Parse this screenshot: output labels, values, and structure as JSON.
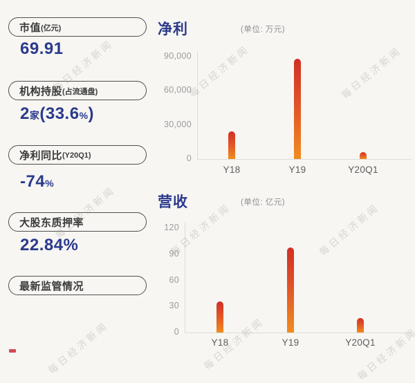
{
  "watermark": {
    "text": "每日经济新闻"
  },
  "colors": {
    "accent_blue": "#2b3a8c",
    "bar_gradient_top": "#d02f26",
    "bar_gradient_bottom": "#f08c1e",
    "pill_border": "#4f4f4f",
    "red_dash": "#d14b55",
    "background": "#f7f6f3"
  },
  "sidebar": {
    "stats": [
      {
        "label": "市值",
        "label_suffix": "(亿元)",
        "value_text": "69.91",
        "value_parts": [
          {
            "t": "69.91",
            "s": "big"
          }
        ]
      },
      {
        "label": "机构持股",
        "label_suffix": "(占流通盘)",
        "value_text": "2家(33.6%)",
        "value_parts": [
          {
            "t": "2",
            "s": "big"
          },
          {
            "t": "家",
            "s": "small"
          },
          {
            "t": "(33.6",
            "s": "big"
          },
          {
            "t": "%",
            "s": "small"
          },
          {
            "t": ")",
            "s": "big"
          }
        ]
      },
      {
        "label": "净利同比",
        "label_suffix": "(Y20Q1)",
        "value_text": "-74%",
        "value_parts": [
          {
            "t": "-74",
            "s": "big"
          },
          {
            "t": "%",
            "s": "small"
          }
        ]
      },
      {
        "label": "大股东质押率",
        "label_suffix": "",
        "value_text": "22.84%",
        "value_parts": [
          {
            "t": "22.84%",
            "s": "big"
          }
        ]
      },
      {
        "label": "最新监管情况",
        "label_suffix": "",
        "value_text": "",
        "value_parts": []
      }
    ]
  },
  "chart_data": [
    {
      "type": "bar",
      "title": "净利",
      "unit": "(单位: 万元)",
      "categories": [
        "Y18",
        "Y19",
        "Y20Q1"
      ],
      "values": [
        24500,
        88000,
        6000
      ],
      "ylim": [
        0,
        90000
      ],
      "ytick_values": [
        0,
        30000,
        60000,
        90000
      ],
      "yticks": [
        "0",
        "30,000",
        "60,000",
        "90,000"
      ],
      "xlabel": "",
      "ylabel": "",
      "grid": false,
      "legend": "none"
    },
    {
      "type": "bar",
      "title": "营收",
      "unit": "(单位: 亿元)",
      "categories": [
        "Y18",
        "Y19",
        "Y20Q1"
      ],
      "values": [
        36,
        98,
        17
      ],
      "ylim": [
        0,
        120
      ],
      "ytick_values": [
        0,
        30,
        60,
        90,
        120
      ],
      "yticks": [
        "0",
        "30",
        "60",
        "90",
        "120"
      ],
      "xlabel": "",
      "ylabel": "",
      "grid": false,
      "legend": "none"
    }
  ]
}
